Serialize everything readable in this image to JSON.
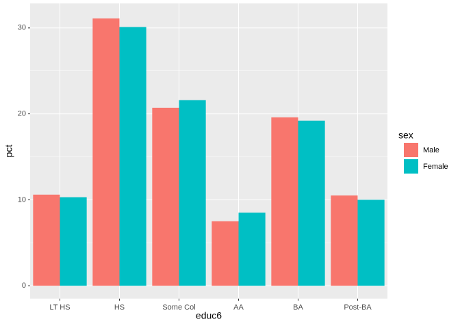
{
  "chart_data": {
    "type": "bar",
    "x_label": "educ6",
    "y_label": "pct",
    "categories": [
      "LT HS",
      "HS",
      "Some Col",
      "AA",
      "BA",
      "Post-BA"
    ],
    "series": [
      {
        "name": "Male",
        "color": "#f8766d",
        "values": [
          10.6,
          31.1,
          20.7,
          7.5,
          19.6,
          10.5
        ]
      },
      {
        "name": "Female",
        "color": "#00bfc4",
        "values": [
          10.3,
          30.1,
          21.6,
          8.5,
          19.2,
          10.0
        ]
      }
    ],
    "legend_title": "sex",
    "legend_position": "right",
    "ylim": [
      -1.5,
      32.85
    ],
    "yticks": [
      0,
      10,
      20,
      30
    ],
    "grid": true
  }
}
